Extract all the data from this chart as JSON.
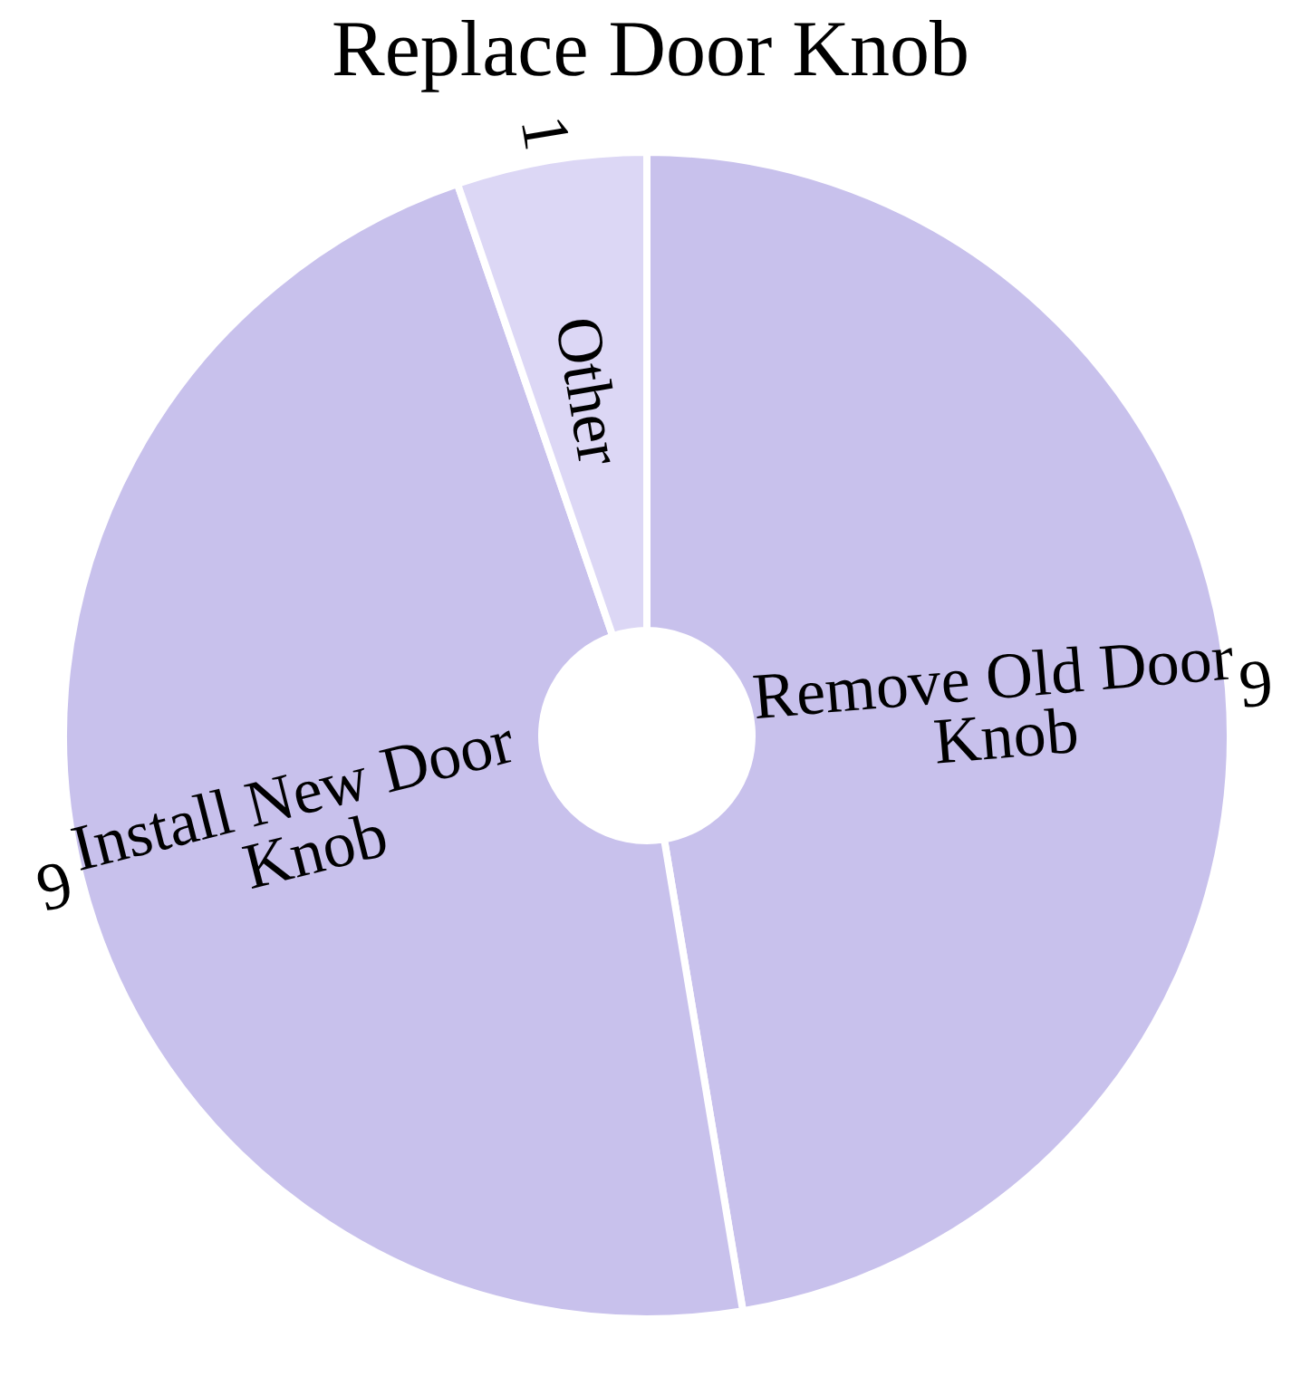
{
  "chart_data": {
    "type": "donut",
    "title": "Replace Door Knob",
    "categories": [
      "Remove Old Door Knob",
      "Install New Door Knob",
      "Other"
    ],
    "values": [
      9,
      9,
      1
    ],
    "colors": [
      "#c8c1ec",
      "#c8c1ec",
      "#dcd7f5"
    ],
    "data_labels": true
  }
}
